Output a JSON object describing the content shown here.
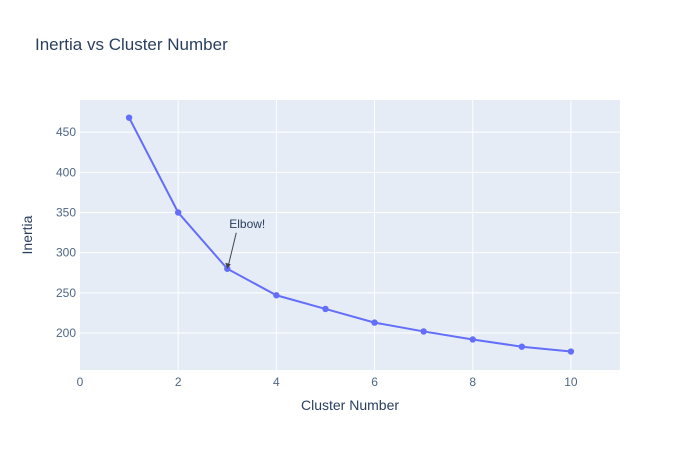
{
  "chart_data": {
    "type": "line",
    "title": "Inertia vs Cluster Number",
    "xlabel": "Cluster Number",
    "ylabel": "Inertia",
    "x": [
      1,
      2,
      3,
      4,
      5,
      6,
      7,
      8,
      9,
      10
    ],
    "series": [
      {
        "values": [
          468,
          350,
          280,
          247,
          230,
          213,
          202,
          192,
          183,
          177
        ]
      }
    ],
    "xlim": [
      0,
      11
    ],
    "ylim": [
      154,
      490
    ],
    "xticks": [
      0,
      2,
      4,
      6,
      8,
      10
    ],
    "yticks": [
      200,
      250,
      300,
      350,
      400,
      450
    ],
    "grid": true,
    "annotations": [
      {
        "text": "Elbow!",
        "x": 3,
        "y": 280
      }
    ],
    "colors": {
      "line": "#636efa",
      "plot_bg": "#e5ecf6",
      "grid": "#ffffff",
      "text": "#2a3f5f",
      "tick_text": "#506784"
    }
  }
}
